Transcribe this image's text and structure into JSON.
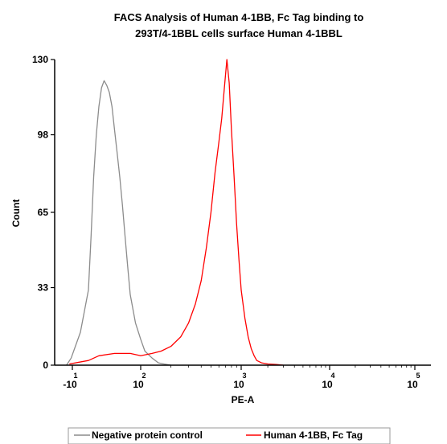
{
  "chart_data": {
    "type": "line",
    "title": "FACS Analysis of  Human 4-1BB, Fc Tag binding to 293T/4-1BBL cells surface Human 4-1BBL",
    "title_lines": [
      "FACS Analysis of  Human 4-1BB, Fc Tag binding to",
      "293T/4-1BBL cells surface Human 4-1BBL"
    ],
    "xlabel": "PE-A",
    "ylabel": "Count",
    "x_scale": "biexponential",
    "xlim": [
      -40,
      200000
    ],
    "ylim": [
      0,
      130
    ],
    "x_ticks": [
      {
        "value": -10,
        "label": "-10",
        "sup": "1"
      },
      {
        "value": 100,
        "label": "10",
        "sup": "2"
      },
      {
        "value": 1000,
        "label": "10",
        "sup": "3"
      },
      {
        "value": 10000,
        "label": "10",
        "sup": "4"
      },
      {
        "value": 100000,
        "label": "10",
        "sup": "5"
      }
    ],
    "y_ticks": [
      0,
      33,
      65,
      98,
      130
    ],
    "legend_position": "bottom-center",
    "series": [
      {
        "name": "Negative protein control",
        "color": "#8c8c8c",
        "x": [
          -20,
          -12,
          -5,
          0,
          5,
          10,
          15,
          20,
          25,
          30,
          35,
          40,
          45,
          50,
          55,
          60,
          65,
          70,
          75,
          80,
          90,
          100,
          110,
          130,
          150,
          170,
          200
        ],
        "y": [
          0,
          3,
          14,
          32,
          55,
          80,
          98,
          110,
          118,
          121,
          119,
          116,
          110,
          100,
          90,
          80,
          68,
          55,
          42,
          30,
          18,
          11,
          6,
          3,
          1,
          0.5,
          0
        ]
      },
      {
        "name": "Human 4-1BB, Fc Tag",
        "color": "#ff0000",
        "x": [
          -15,
          0,
          20,
          50,
          80,
          100,
          130,
          160,
          200,
          250,
          300,
          350,
          400,
          450,
          500,
          550,
          600,
          640,
          680,
          720,
          760,
          800,
          850,
          900,
          950,
          1000,
          1100,
          1200,
          1300,
          1400,
          1500,
          1700,
          2000,
          2500,
          3000
        ],
        "y": [
          0.5,
          2,
          4,
          5,
          5,
          4,
          5,
          6,
          8,
          12,
          18,
          26,
          36,
          50,
          65,
          82,
          95,
          105,
          118,
          130,
          120,
          100,
          80,
          60,
          45,
          32,
          20,
          12,
          7,
          4,
          2,
          1,
          0.5,
          0.3,
          0
        ]
      }
    ]
  }
}
